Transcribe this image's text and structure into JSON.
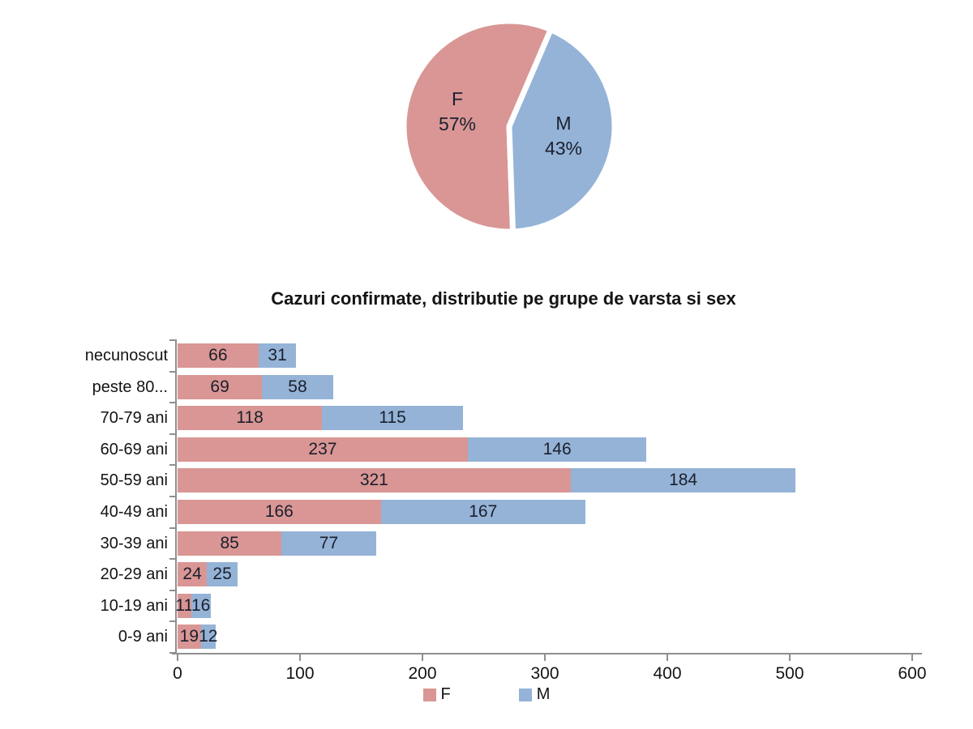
{
  "chart_data": [
    {
      "type": "pie",
      "start_angle_deg": 178,
      "legend_position": "none",
      "slices": [
        {
          "label": "F",
          "pct": "57%",
          "value": 57,
          "color": "#D99694"
        },
        {
          "label": "M",
          "pct": "43%",
          "value": 43,
          "color": "#95B3D7"
        }
      ]
    },
    {
      "type": "bar",
      "orientation": "horizontal-stacked",
      "title": "Cazuri confirmate, distributie pe grupe de varsta si sex",
      "categories": [
        "necunoscut",
        "peste 80...",
        "70-79 ani",
        "60-69 ani",
        "50-59 ani",
        "40-49 ani",
        "30-39 ani",
        "20-29 ani",
        "10-19 ani",
        "0-9 ani"
      ],
      "series": [
        {
          "name": "F",
          "color": "#D99694",
          "values": [
            66,
            69,
            118,
            237,
            321,
            166,
            85,
            24,
            11,
            19
          ]
        },
        {
          "name": "M",
          "color": "#95B3D7",
          "values": [
            31,
            58,
            115,
            146,
            184,
            167,
            77,
            25,
            16,
            12
          ]
        }
      ],
      "x_ticks": [
        0,
        100,
        200,
        300,
        400,
        500,
        600
      ],
      "xlim": [
        0,
        600
      ],
      "grid": false,
      "legend": {
        "position": "bottom",
        "entries": [
          {
            "label": "F",
            "color": "#D99694"
          },
          {
            "label": "M",
            "color": "#95B3D7"
          }
        ]
      }
    }
  ]
}
